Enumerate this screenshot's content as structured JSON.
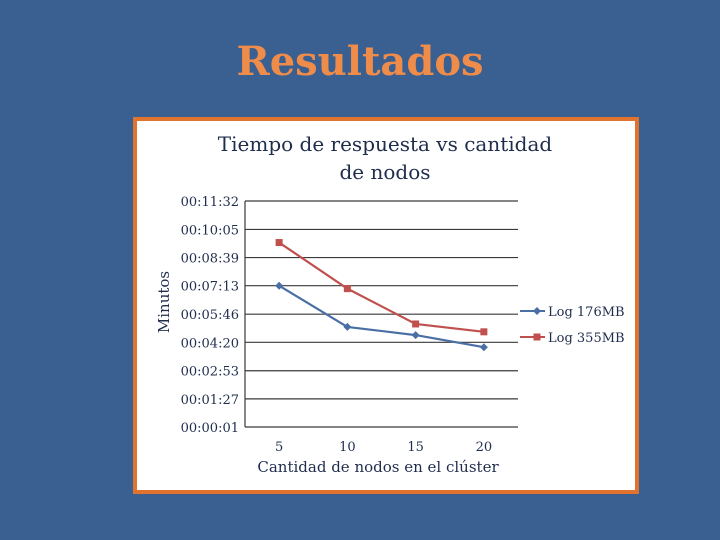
{
  "slide": {
    "title": "Resultados"
  },
  "colors": {
    "background": "#3a6091",
    "title": "#ef8c4a",
    "frame_border": "#e0742e",
    "series1": "#4a6fa5",
    "series2": "#c0504d"
  },
  "chart_data": {
    "type": "line",
    "title_lines": [
      "Tiempo de respuesta vs cantidad",
      "de nodos"
    ],
    "xlabel": "Cantidad de nodos en el clúster",
    "ylabel": "Minutos",
    "categories": [
      "5",
      "10",
      "15",
      "20"
    ],
    "y_ticks": [
      "00:00:01",
      "00:01:27",
      "00:02:53",
      "00:04:20",
      "00:05:46",
      "00:07:13",
      "00:08:39",
      "00:10:05",
      "00:11:32"
    ],
    "ylim": [
      "00:00:01",
      "00:11:32"
    ],
    "grid": true,
    "legend": "right",
    "series": [
      {
        "name": "Log 176MB",
        "marker": "diamond",
        "values": [
          "00:07:13",
          "00:05:07",
          "00:04:42",
          "00:04:05"
        ]
      },
      {
        "name": "Log 355MB",
        "marker": "square",
        "values": [
          "00:09:25",
          "00:07:04",
          "00:05:16",
          "00:04:52"
        ]
      }
    ]
  }
}
